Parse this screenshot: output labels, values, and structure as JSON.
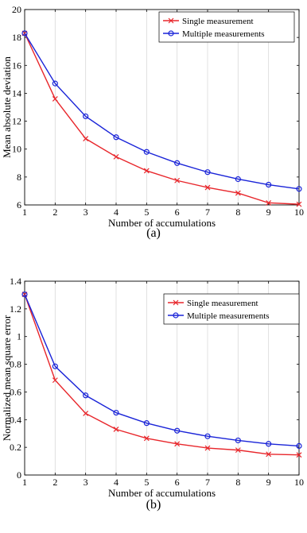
{
  "figure": {
    "captions": [
      "(a)",
      "(b)"
    ]
  },
  "chart_data": [
    {
      "type": "line",
      "caption": "(a)",
      "xlabel": "Number of accumulations",
      "ylabel": "Mean absolute deviation",
      "x": [
        1,
        2,
        3,
        4,
        5,
        6,
        7,
        8,
        9,
        10
      ],
      "xlim": [
        1,
        10
      ],
      "ylim": [
        6,
        20
      ],
      "xticks": [
        1,
        2,
        3,
        4,
        5,
        6,
        7,
        8,
        9,
        10
      ],
      "yticks": [
        6,
        8,
        10,
        12,
        14,
        16,
        18,
        20
      ],
      "ytick_labels": [
        "6",
        "8",
        "10",
        "12",
        "14",
        "16",
        "18",
        "20"
      ],
      "grid": "vertical",
      "legend_position": "top-right",
      "series": [
        {
          "name": "Single measurement",
          "color": "#e8262b",
          "marker": "x",
          "values": [
            18.3,
            13.6,
            10.75,
            9.45,
            8.45,
            7.75,
            7.25,
            6.85,
            6.15,
            6.05
          ]
        },
        {
          "name": "Multiple measurements",
          "color": "#1a24d8",
          "marker": "o",
          "values": [
            18.3,
            14.7,
            12.35,
            10.85,
            9.8,
            9.0,
            8.35,
            7.85,
            7.45,
            7.15
          ]
        }
      ]
    },
    {
      "type": "line",
      "caption": "(b)",
      "xlabel": "Number of accumulations",
      "ylabel": "Normalized mean square error",
      "x": [
        1,
        2,
        3,
        4,
        5,
        6,
        7,
        8,
        9,
        10
      ],
      "xlim": [
        1,
        10
      ],
      "ylim": [
        0,
        1.4
      ],
      "xticks": [
        1,
        2,
        3,
        4,
        5,
        6,
        7,
        8,
        9,
        10
      ],
      "yticks": [
        0,
        0.2,
        0.4,
        0.6,
        0.8,
        1,
        1.2,
        1.4
      ],
      "ytick_labels": [
        "0",
        "0.2",
        "0.4",
        "0.6",
        "0.8",
        "1",
        "1.2",
        "1.4"
      ],
      "grid": "vertical",
      "legend_position": "top-right",
      "series": [
        {
          "name": "Single measurement",
          "color": "#e8262b",
          "marker": "x",
          "values": [
            1.305,
            0.685,
            0.445,
            0.33,
            0.265,
            0.225,
            0.195,
            0.18,
            0.15,
            0.145
          ]
        },
        {
          "name": "Multiple measurements",
          "color": "#1a24d8",
          "marker": "o",
          "values": [
            1.305,
            0.785,
            0.575,
            0.45,
            0.375,
            0.32,
            0.28,
            0.25,
            0.225,
            0.21
          ]
        }
      ]
    }
  ]
}
